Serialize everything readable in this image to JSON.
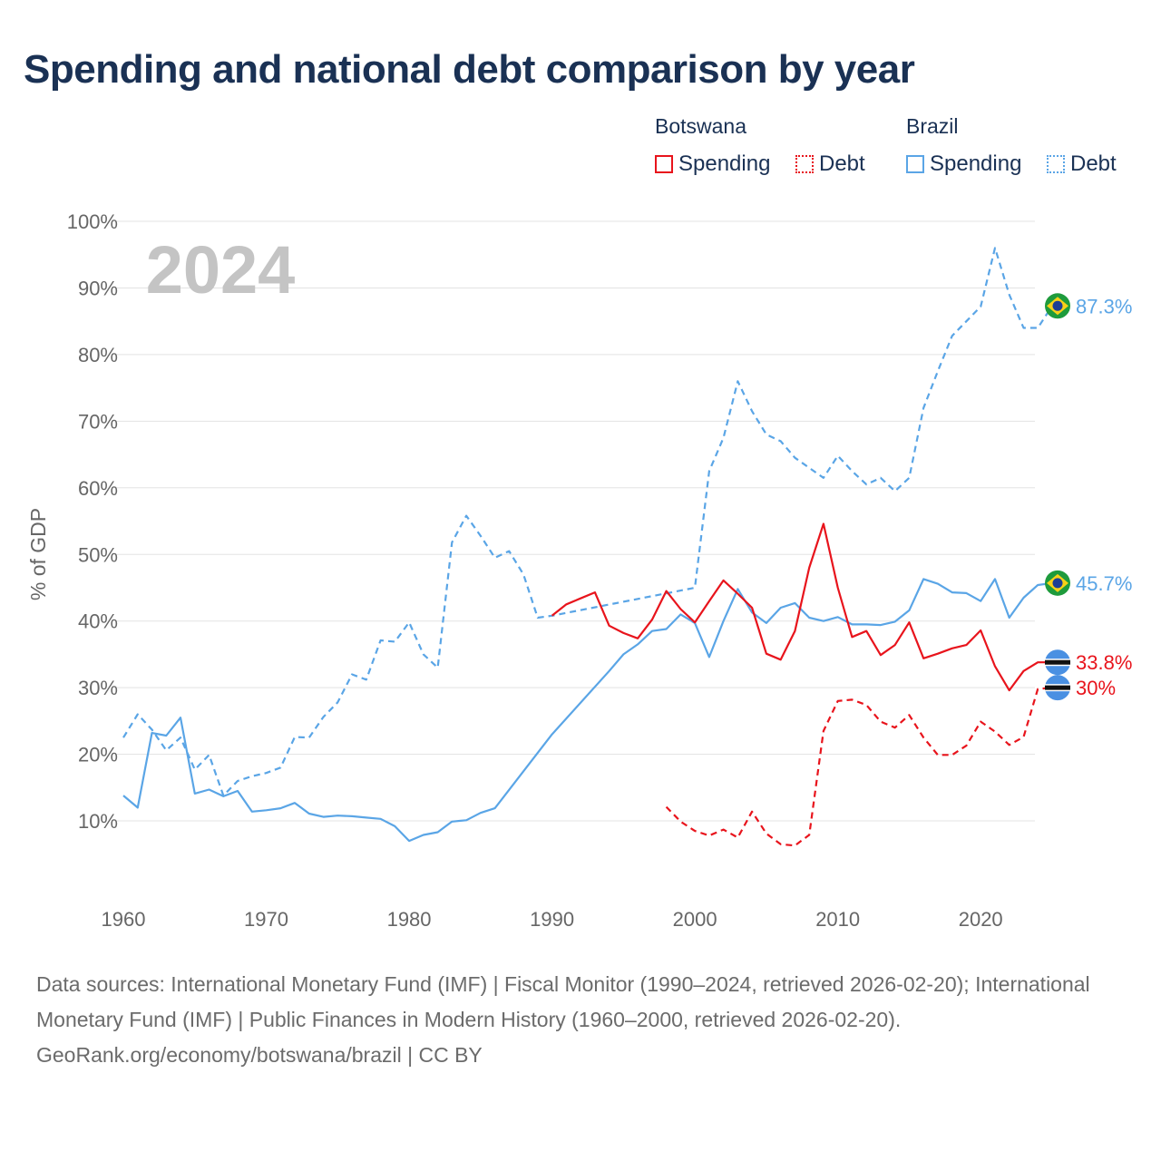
{
  "title": "Spending and national debt comparison by year",
  "legend": {
    "groups": [
      {
        "country": "Botswana",
        "items": [
          {
            "label": "Spending",
            "style": "solid",
            "color": "#e8141c"
          },
          {
            "label": "Debt",
            "style": "dotted",
            "color": "#e8141c"
          }
        ]
      },
      {
        "country": "Brazil",
        "items": [
          {
            "label": "Spending",
            "style": "solid",
            "color": "#5aa5e6"
          },
          {
            "label": "Debt",
            "style": "dotted",
            "color": "#5aa5e6"
          }
        ]
      }
    ]
  },
  "chart_data": {
    "type": "line",
    "title": "Spending and national debt comparison by year",
    "year_label": "2024",
    "xlabel": "",
    "ylabel": "% of GDP",
    "xlim": [
      1960,
      2024
    ],
    "ylim": [
      0,
      100
    ],
    "x_ticks": [
      1960,
      1970,
      1980,
      1990,
      2000,
      2010,
      2020
    ],
    "y_ticks": [
      10,
      20,
      30,
      40,
      50,
      60,
      70,
      80,
      90,
      100
    ],
    "y_tick_labels": [
      "10%",
      "20%",
      "30%",
      "40%",
      "50%",
      "60%",
      "70%",
      "80%",
      "90%",
      "100%"
    ],
    "grid": true,
    "series": [
      {
        "name": "Brazil Debt",
        "country": "Brazil",
        "measure": "Debt",
        "color": "#5aa5e6",
        "dashed": true,
        "end_label": "87.3%",
        "end_value": 87.3,
        "flag": "brazil-flag",
        "points": [
          [
            1960,
            22.5
          ],
          [
            1961,
            26
          ],
          [
            1962,
            23.7
          ],
          [
            1963,
            20.6
          ],
          [
            1964,
            22.5
          ],
          [
            1965,
            17.7
          ],
          [
            1966,
            19.9
          ],
          [
            1967,
            13.8
          ],
          [
            1968,
            16
          ],
          [
            1969,
            16.7
          ],
          [
            1970,
            17.2
          ],
          [
            1971,
            18
          ],
          [
            1972,
            22.6
          ],
          [
            1973,
            22.5
          ],
          [
            1974,
            25.6
          ],
          [
            1975,
            27.8
          ],
          [
            1976,
            32
          ],
          [
            1977,
            31.2
          ],
          [
            1978,
            37.1
          ],
          [
            1979,
            36.9
          ],
          [
            1980,
            39.8
          ],
          [
            1981,
            35
          ],
          [
            1982,
            33
          ],
          [
            1983,
            51.8
          ],
          [
            1984,
            55.8
          ],
          [
            1985,
            52.8
          ],
          [
            1986,
            49.5
          ],
          [
            1987,
            50.5
          ],
          [
            1988,
            47
          ],
          [
            1989,
            40.5
          ],
          [
            1990,
            40.8
          ],
          [
            2000,
            45
          ],
          [
            2001,
            62.5
          ],
          [
            2002,
            67.5
          ],
          [
            2003,
            76
          ],
          [
            2004,
            71.5
          ],
          [
            2005,
            68
          ],
          [
            2006,
            67
          ],
          [
            2007,
            64.5
          ],
          [
            2008,
            63
          ],
          [
            2009,
            61.5
          ],
          [
            2010,
            64.8
          ],
          [
            2011,
            62.5
          ],
          [
            2012,
            60.5
          ],
          [
            2013,
            61.5
          ],
          [
            2014,
            59.5
          ],
          [
            2015,
            61.5
          ],
          [
            2016,
            72
          ],
          [
            2017,
            77.5
          ],
          [
            2018,
            82.8
          ],
          [
            2019,
            85
          ],
          [
            2020,
            87.2
          ],
          [
            2021,
            96
          ],
          [
            2022,
            89
          ],
          [
            2023,
            84
          ],
          [
            2024,
            84
          ],
          [
            2025,
            87.3
          ],
          [
            2026,
            87.3
          ]
        ]
      },
      {
        "name": "Brazil Spending",
        "country": "Brazil",
        "measure": "Spending",
        "color": "#5aa5e6",
        "dashed": false,
        "end_label": "45.7%",
        "end_value": 45.7,
        "flag": "brazil-flag",
        "points": [
          [
            1960,
            13.8
          ],
          [
            1961,
            12
          ],
          [
            1962,
            23.2
          ],
          [
            1963,
            22.8
          ],
          [
            1964,
            25.5
          ],
          [
            1965,
            14.1
          ],
          [
            1966,
            14.7
          ],
          [
            1967,
            13.7
          ],
          [
            1968,
            14.5
          ],
          [
            1969,
            11.4
          ],
          [
            1970,
            11.6
          ],
          [
            1971,
            11.9
          ],
          [
            1972,
            12.7
          ],
          [
            1973,
            11.1
          ],
          [
            1974,
            10.6
          ],
          [
            1975,
            10.8
          ],
          [
            1976,
            10.7
          ],
          [
            1977,
            10.5
          ],
          [
            1978,
            10.3
          ],
          [
            1979,
            9.2
          ],
          [
            1980,
            7
          ],
          [
            1981,
            7.9
          ],
          [
            1982,
            8.3
          ],
          [
            1983,
            9.9
          ],
          [
            1984,
            10.1
          ],
          [
            1985,
            11.2
          ],
          [
            1986,
            11.9
          ],
          [
            1990,
            23
          ],
          [
            1994,
            32.5
          ],
          [
            1995,
            35
          ],
          [
            1996,
            36.5
          ],
          [
            1997,
            38.5
          ],
          [
            1998,
            38.8
          ],
          [
            1999,
            41
          ],
          [
            2000,
            39.7
          ],
          [
            2001,
            34.6
          ],
          [
            2002,
            40
          ],
          [
            2003,
            44.8
          ],
          [
            2004,
            41.3
          ],
          [
            2005,
            39.7
          ],
          [
            2006,
            42
          ],
          [
            2007,
            42.7
          ],
          [
            2008,
            40.5
          ],
          [
            2009,
            40
          ],
          [
            2010,
            40.6
          ],
          [
            2011,
            39.5
          ],
          [
            2012,
            39.5
          ],
          [
            2013,
            39.4
          ],
          [
            2014,
            39.9
          ],
          [
            2015,
            41.6
          ],
          [
            2016,
            46.3
          ],
          [
            2017,
            45.6
          ],
          [
            2018,
            44.3
          ],
          [
            2019,
            44.2
          ],
          [
            2020,
            43
          ],
          [
            2021,
            46.3
          ],
          [
            2022,
            40.5
          ],
          [
            2023,
            43.5
          ],
          [
            2024,
            45.4
          ],
          [
            2025,
            45.7
          ],
          [
            2026,
            45.7
          ]
        ]
      },
      {
        "name": "Botswana Spending",
        "country": "Botswana",
        "measure": "Spending",
        "color": "#e8141c",
        "dashed": false,
        "end_label": "33.8%",
        "end_value": 33.8,
        "flag": "botswana-flag",
        "points": [
          [
            1990,
            40.8
          ],
          [
            1991,
            42.5
          ],
          [
            1992,
            43.4
          ],
          [
            1993,
            44.3
          ],
          [
            1994,
            39.3
          ],
          [
            1995,
            38.2
          ],
          [
            1996,
            37.4
          ],
          [
            1997,
            40.2
          ],
          [
            1998,
            44.5
          ],
          [
            1999,
            41.8
          ],
          [
            2000,
            39.8
          ],
          [
            2001,
            43
          ],
          [
            2002,
            46.1
          ],
          [
            2003,
            44.1
          ],
          [
            2004,
            42
          ],
          [
            2005,
            35.1
          ],
          [
            2006,
            34.2
          ],
          [
            2007,
            38.5
          ],
          [
            2008,
            48
          ],
          [
            2009,
            54.6
          ],
          [
            2010,
            45
          ],
          [
            2011,
            37.6
          ],
          [
            2012,
            38.5
          ],
          [
            2013,
            34.9
          ],
          [
            2014,
            36.4
          ],
          [
            2015,
            39.8
          ],
          [
            2016,
            34.4
          ],
          [
            2017,
            35.1
          ],
          [
            2018,
            35.9
          ],
          [
            2019,
            36.4
          ],
          [
            2020,
            38.6
          ],
          [
            2021,
            33.2
          ],
          [
            2022,
            29.6
          ],
          [
            2023,
            32.5
          ],
          [
            2024,
            33.8
          ],
          [
            2025,
            33.8
          ]
        ]
      },
      {
        "name": "Botswana Debt",
        "country": "Botswana",
        "measure": "Debt",
        "color": "#e8141c",
        "dashed": true,
        "end_label": "30%",
        "end_value": 30,
        "flag": "botswana-flag",
        "points": [
          [
            1998,
            12.1
          ],
          [
            1999,
            9.9
          ],
          [
            2000,
            8.5
          ],
          [
            2001,
            7.8
          ],
          [
            2002,
            8.7
          ],
          [
            2003,
            7.5
          ],
          [
            2004,
            11.4
          ],
          [
            2005,
            8.1
          ],
          [
            2006,
            6.5
          ],
          [
            2007,
            6.3
          ],
          [
            2008,
            7.9
          ],
          [
            2009,
            23.5
          ],
          [
            2010,
            28
          ],
          [
            2011,
            28.2
          ],
          [
            2012,
            27.4
          ],
          [
            2013,
            24.9
          ],
          [
            2014,
            24
          ],
          [
            2015,
            25.9
          ],
          [
            2016,
            22.5
          ],
          [
            2017,
            19.9
          ],
          [
            2018,
            19.9
          ],
          [
            2019,
            21.3
          ],
          [
            2020,
            24.9
          ],
          [
            2021,
            23.4
          ],
          [
            2022,
            21.4
          ],
          [
            2023,
            22.6
          ],
          [
            2024,
            29.8
          ],
          [
            2025,
            30
          ]
        ]
      }
    ]
  },
  "footer": {
    "sources": "Data sources: International Monetary Fund (IMF) | Fiscal Monitor (1990–2024, retrieved 2026-02-20); International Monetary Fund (IMF) | Public Finances in Modern History (1960–2000, retrieved 2026-02-20).",
    "credit": "GeoRank.org/economy/botswana/brazil | CC BY"
  }
}
